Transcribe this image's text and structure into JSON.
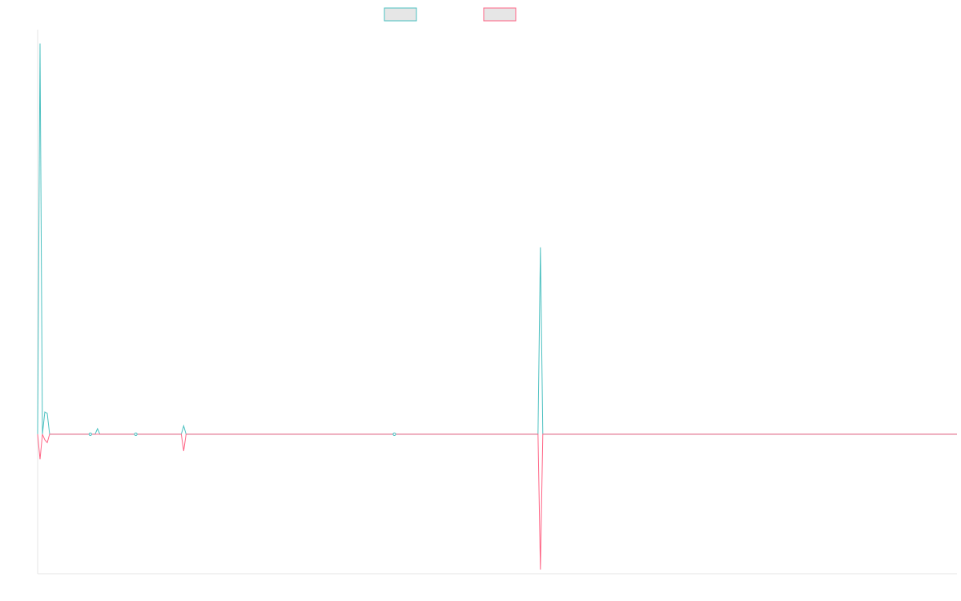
{
  "chart_data": {
    "type": "line",
    "title": "",
    "xlabel": "",
    "ylabel": "",
    "grid": false,
    "legend_position": "top-center",
    "x": [
      0,
      1,
      2,
      3,
      4,
      5,
      6,
      7,
      8,
      9,
      10,
      11,
      12,
      13,
      14,
      15,
      16,
      17,
      18,
      19,
      20,
      21,
      22,
      23,
      24,
      25,
      26,
      27,
      28,
      29,
      30,
      31,
      32,
      33,
      34,
      35,
      36,
      37,
      38,
      39,
      40,
      41,
      42,
      43,
      44,
      45,
      46,
      47,
      48,
      49,
      50,
      51,
      52,
      53,
      54,
      55,
      56,
      57,
      58,
      59,
      60,
      61,
      62,
      63,
      64,
      65,
      66,
      67,
      68,
      69,
      70,
      71,
      72,
      73,
      74,
      75,
      76,
      77,
      78,
      79,
      80,
      81,
      82,
      83,
      84,
      85,
      86,
      87,
      88,
      89,
      90,
      91,
      92,
      93,
      94,
      95,
      96,
      97,
      98,
      99,
      100,
      101,
      102,
      103,
      104,
      105,
      106,
      107,
      108,
      109,
      110,
      111,
      112,
      113,
      114,
      115,
      116,
      117,
      118,
      119,
      120,
      121,
      122,
      123,
      124,
      125,
      126,
      127,
      128,
      129,
      130,
      131,
      132,
      133,
      134,
      135,
      136,
      137,
      138,
      139,
      140,
      141,
      142,
      143,
      144,
      145,
      146,
      147,
      148,
      149,
      150,
      151,
      152,
      153,
      154,
      155,
      156,
      157,
      158,
      159,
      160,
      161,
      162,
      163,
      164,
      165,
      166,
      167,
      168,
      169,
      170,
      171,
      172,
      173,
      174,
      175,
      176,
      177,
      178,
      179,
      180,
      181,
      182,
      183,
      184,
      185,
      186,
      187,
      188,
      189,
      190,
      191,
      192,
      193,
      194,
      195,
      196,
      197,
      198,
      199,
      200,
      201,
      202,
      203,
      204,
      205,
      206,
      207,
      208,
      209,
      210,
      211,
      212,
      213,
      214,
      215,
      216,
      217,
      218,
      219,
      220,
      221,
      222,
      223,
      224,
      225,
      226,
      227,
      228,
      229,
      230,
      231,
      232,
      233,
      234,
      235,
      236,
      237,
      238,
      239,
      240,
      241,
      242,
      243,
      244,
      245,
      246,
      247,
      248,
      249,
      250,
      251,
      252,
      253,
      254,
      255,
      256,
      257,
      258,
      259,
      260,
      261,
      262,
      263,
      264,
      265,
      266,
      267,
      268,
      269,
      270,
      271,
      272,
      273,
      274,
      275,
      276,
      277,
      278,
      279,
      280,
      281,
      282,
      283,
      284,
      285,
      286,
      287,
      288,
      289,
      290,
      291,
      292,
      293,
      294,
      295,
      296,
      297,
      298,
      299,
      300,
      301,
      302,
      303,
      304,
      305,
      306,
      307,
      308,
      309,
      310,
      311,
      312,
      313,
      314,
      315,
      316,
      317,
      318,
      319,
      320,
      321,
      322,
      323,
      324,
      325,
      326,
      327,
      328,
      329,
      330,
      331,
      332,
      333,
      334,
      335,
      336,
      337,
      338,
      339,
      340,
      341,
      342,
      343,
      344,
      345,
      346,
      347,
      348,
      349,
      350,
      351,
      352,
      353,
      354,
      355,
      356,
      357,
      358,
      359,
      360,
      361,
      362,
      363,
      364,
      365,
      366,
      367,
      368,
      369,
      370,
      371,
      372,
      373,
      374,
      375,
      376,
      377,
      378,
      379,
      380,
      381,
      382,
      383,
      384
    ],
    "ylim": [
      -100,
      290
    ],
    "series": [
      {
        "name": "",
        "color": "#4bc0c0",
        "spikes": [
          [
            0,
            0
          ],
          [
            1,
            280
          ],
          [
            2,
            0
          ],
          [
            3,
            16
          ],
          [
            4,
            15
          ],
          [
            5,
            0
          ],
          [
            22,
            0
          ],
          [
            25,
            4
          ],
          [
            41,
            0
          ],
          [
            61,
            6
          ],
          [
            149,
            0
          ],
          [
            209,
            0
          ],
          [
            210,
            134
          ],
          [
            211,
            0
          ],
          [
            384,
            0
          ]
        ]
      },
      {
        "name": "",
        "color": "#ff6384",
        "spikes": [
          [
            0,
            0
          ],
          [
            1,
            -18
          ],
          [
            2,
            0
          ],
          [
            3,
            -4
          ],
          [
            4,
            -6
          ],
          [
            5,
            0
          ],
          [
            22,
            0
          ],
          [
            41,
            0
          ],
          [
            61,
            -12
          ],
          [
            149,
            0
          ],
          [
            209,
            0
          ],
          [
            210,
            -97
          ],
          [
            211,
            0
          ],
          [
            384,
            0
          ]
        ]
      }
    ]
  }
}
